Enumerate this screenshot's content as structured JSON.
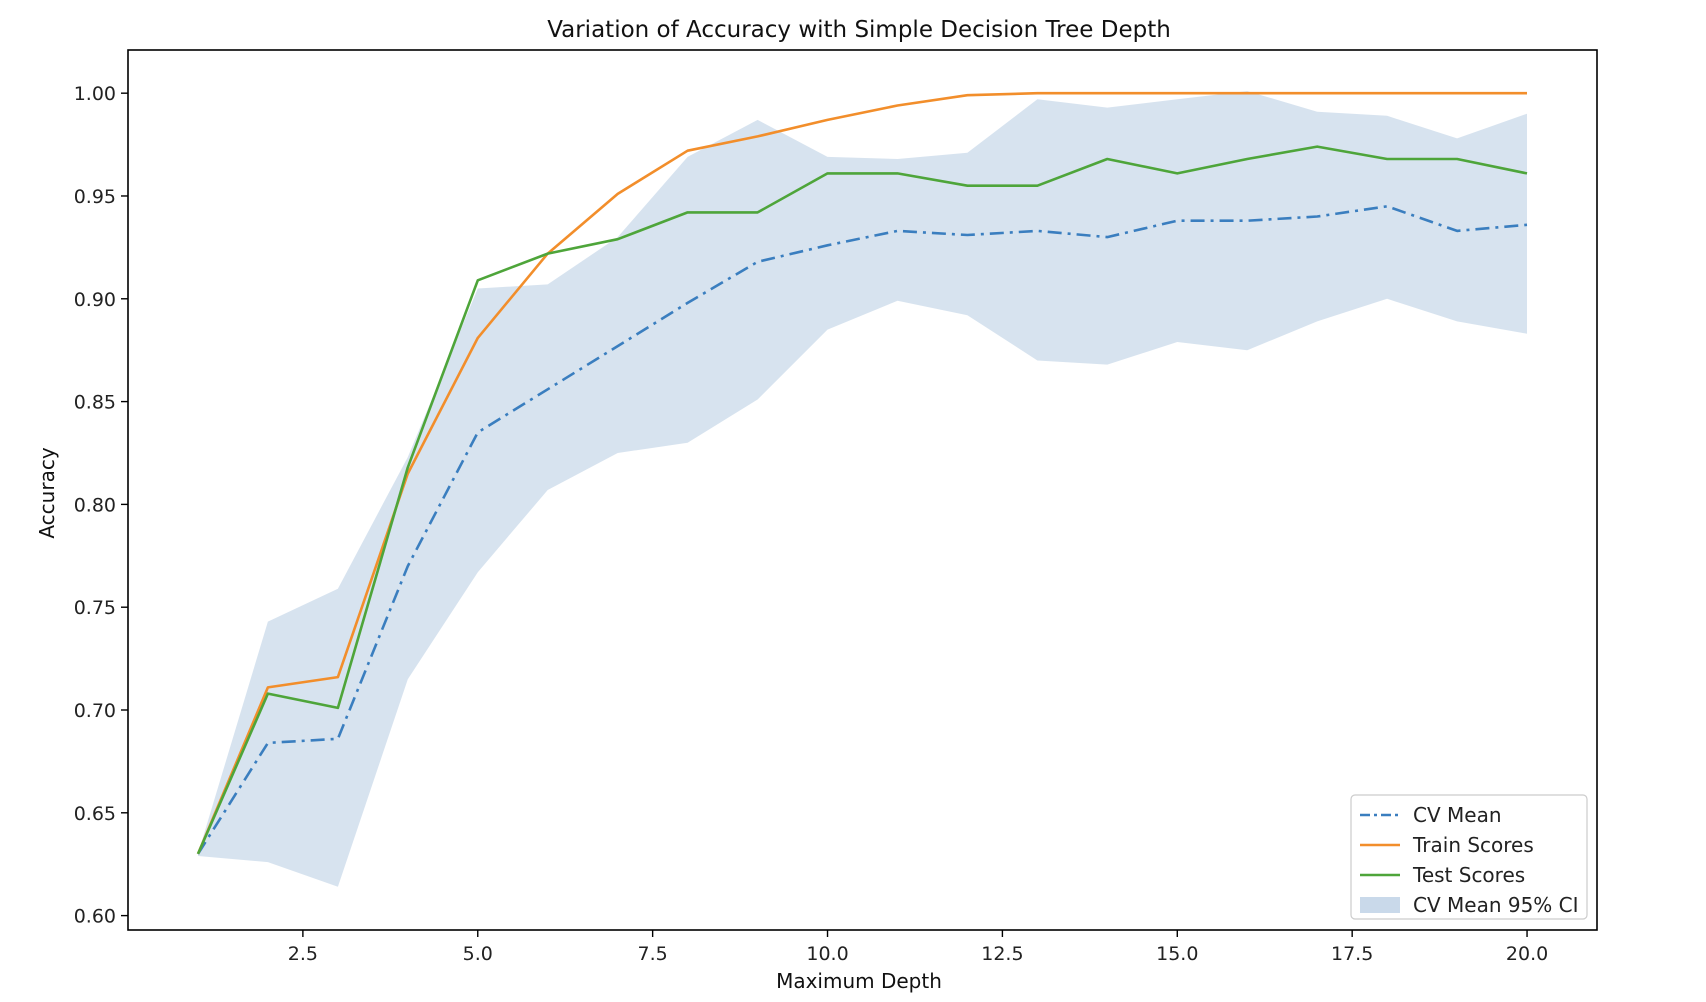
{
  "chart_data": {
    "type": "line",
    "title": "Variation of Accuracy with Simple Decision Tree Depth",
    "xlabel": "Maximum Depth",
    "ylabel": "Accuracy",
    "xlim": [
      0.0,
      21.0
    ],
    "ylim": [
      0.593,
      1.021
    ],
    "xticks": [
      2.5,
      5.0,
      7.5,
      10.0,
      12.5,
      15.0,
      17.5,
      20.0
    ],
    "xtick_labels": [
      "2.5",
      "5.0",
      "7.5",
      "10.0",
      "12.5",
      "15.0",
      "17.5",
      "20.0"
    ],
    "yticks": [
      0.6,
      0.65,
      0.7,
      0.75,
      0.8,
      0.85,
      0.9,
      0.95,
      1.0
    ],
    "ytick_labels": [
      "0.60",
      "0.65",
      "0.70",
      "0.75",
      "0.80",
      "0.85",
      "0.90",
      "0.95",
      "1.00"
    ],
    "grid": false,
    "legend_position": "bottom-right",
    "x": [
      1,
      2,
      3,
      4,
      5,
      6,
      7,
      8,
      9,
      10,
      11,
      12,
      13,
      14,
      15,
      16,
      17,
      18,
      19,
      20
    ],
    "series": [
      {
        "name": "CV Mean",
        "style": "dashdot",
        "color": "#3a7ebf",
        "values": [
          0.63,
          0.684,
          0.686,
          0.77,
          0.835,
          0.856,
          0.877,
          0.898,
          0.918,
          0.926,
          0.933,
          0.931,
          0.933,
          0.93,
          0.938,
          0.938,
          0.94,
          0.945,
          0.933,
          0.936
        ]
      },
      {
        "name": "Train Scores",
        "style": "solid",
        "color": "#f28e2b",
        "values": [
          0.63,
          0.711,
          0.716,
          0.815,
          0.881,
          0.922,
          0.951,
          0.972,
          0.979,
          0.987,
          0.994,
          0.999,
          1.0,
          1.0,
          1.0,
          1.0,
          1.0,
          1.0,
          1.0,
          1.0
        ]
      },
      {
        "name": "Test Scores",
        "style": "solid",
        "color": "#4ea53a",
        "values": [
          0.63,
          0.708,
          0.701,
          0.818,
          0.909,
          0.922,
          0.929,
          0.942,
          0.942,
          0.961,
          0.961,
          0.955,
          0.955,
          0.968,
          0.961,
          0.968,
          0.974,
          0.968,
          0.968,
          0.961
        ]
      }
    ],
    "band": {
      "name": "CV Mean 95% CI",
      "color": "#c9d9ea",
      "upper": [
        0.63,
        0.743,
        0.759,
        0.823,
        0.905,
        0.907,
        0.93,
        0.969,
        0.987,
        0.969,
        0.968,
        0.971,
        0.997,
        0.993,
        0.997,
        1.001,
        0.991,
        0.989,
        0.978,
        0.99
      ],
      "lower": [
        0.629,
        0.626,
        0.614,
        0.715,
        0.767,
        0.807,
        0.825,
        0.83,
        0.851,
        0.885,
        0.899,
        0.892,
        0.87,
        0.868,
        0.879,
        0.875,
        0.889,
        0.9,
        0.889,
        0.883
      ]
    }
  }
}
